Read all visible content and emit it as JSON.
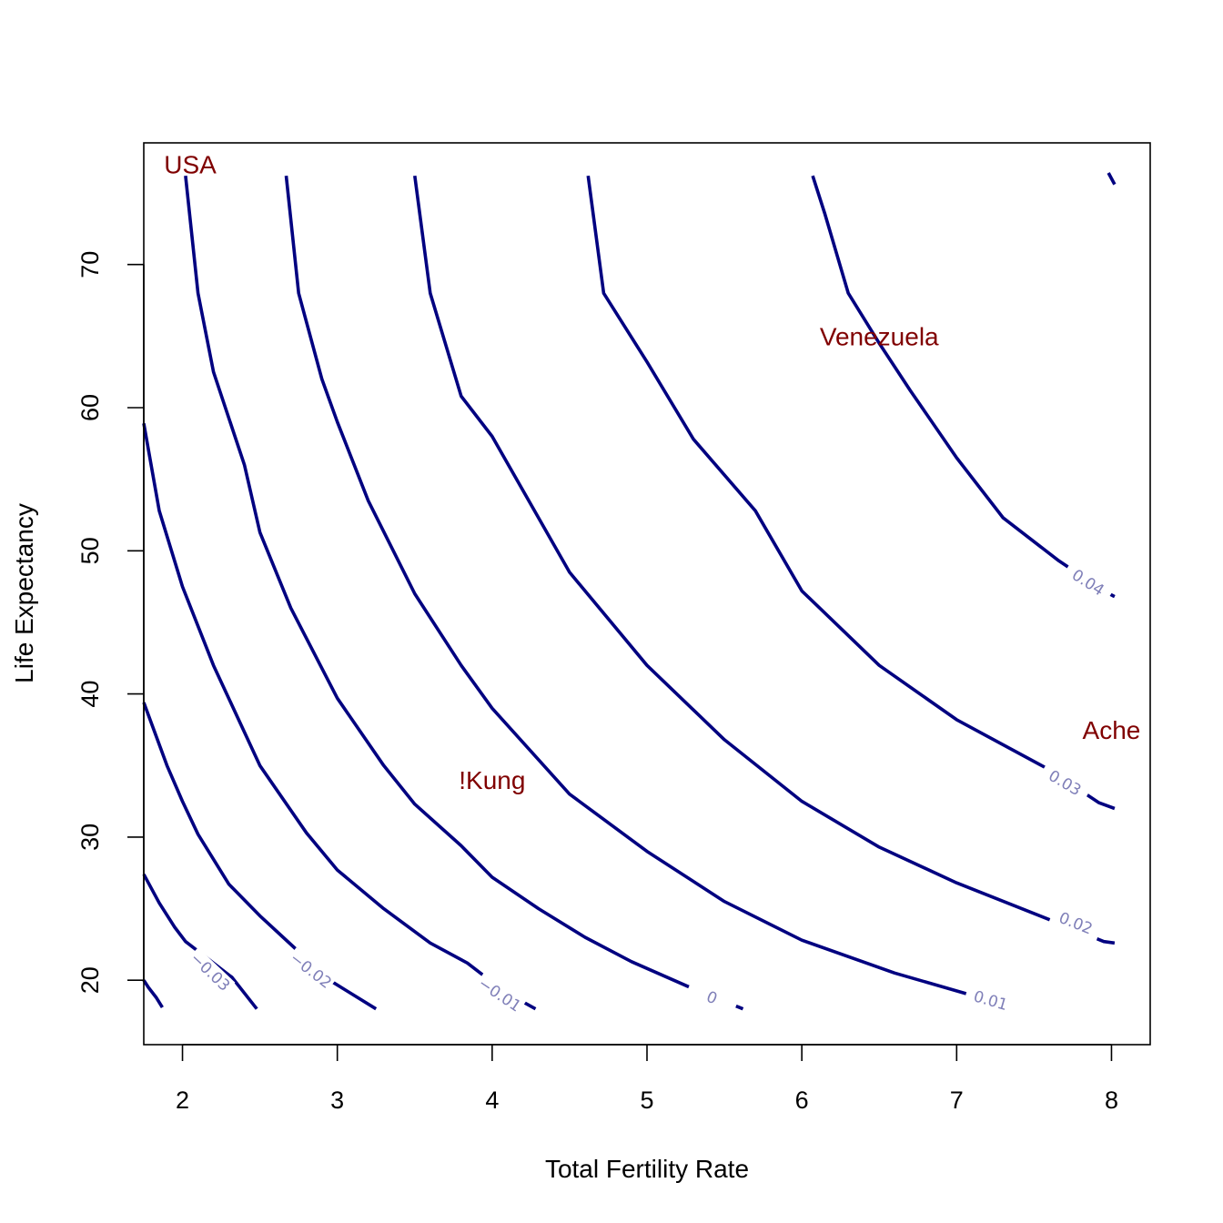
{
  "chart_data": {
    "type": "contour",
    "title": "",
    "xlabel": "Total Fertility Rate",
    "ylabel": "Life Expectancy",
    "xlim": [
      1.75,
      8.25
    ],
    "ylim": [
      15.5,
      78.5
    ],
    "x_ticks": [
      2,
      3,
      4,
      5,
      6,
      7,
      8
    ],
    "y_ticks": [
      20,
      30,
      40,
      50,
      60,
      70
    ],
    "grid": false,
    "line_color": "#000080",
    "label_color": "#7f7fb8",
    "point_color": "#800000",
    "contours": [
      {
        "level": "",
        "label_at": null,
        "points": [
          [
            1.75,
            20.0
          ],
          [
            1.78,
            19.5
          ],
          [
            1.83,
            18.8
          ],
          [
            1.87,
            18.1
          ]
        ]
      },
      {
        "level": "−0.03",
        "label_at": [
          2.18,
          20.6
        ],
        "points": [
          [
            1.75,
            27.4
          ],
          [
            1.85,
            25.4
          ],
          [
            1.95,
            23.7
          ],
          [
            2.02,
            22.7
          ],
          [
            2.32,
            20.2
          ],
          [
            2.48,
            18.0
          ]
        ]
      },
      {
        "level": "−0.02",
        "label_at": [
          2.83,
          20.7
        ],
        "points": [
          [
            1.75,
            39.4
          ],
          [
            1.9,
            35.0
          ],
          [
            2.0,
            32.5
          ],
          [
            2.1,
            30.2
          ],
          [
            2.3,
            26.7
          ],
          [
            2.5,
            24.5
          ],
          [
            2.65,
            23.0
          ],
          [
            2.95,
            20.0
          ],
          [
            3.25,
            18.0
          ]
        ]
      },
      {
        "level": "−0.01",
        "label_at": [
          4.05,
          19.0
        ],
        "points": [
          [
            1.75,
            58.9
          ],
          [
            1.85,
            52.8
          ],
          [
            2.0,
            47.5
          ],
          [
            2.2,
            42.0
          ],
          [
            2.5,
            35.0
          ],
          [
            2.8,
            30.3
          ],
          [
            3.0,
            27.7
          ],
          [
            3.3,
            25.0
          ],
          [
            3.6,
            22.6
          ],
          [
            3.84,
            21.2
          ],
          [
            4.08,
            19.2
          ],
          [
            4.28,
            18.0
          ]
        ]
      },
      {
        "level": "0",
        "label_at": [
          5.42,
          18.8
        ],
        "points": [
          [
            2.02,
            76.2
          ],
          [
            2.1,
            68.0
          ],
          [
            2.2,
            62.5
          ],
          [
            2.4,
            56.0
          ],
          [
            2.5,
            51.3
          ],
          [
            2.7,
            46.0
          ],
          [
            3.0,
            39.7
          ],
          [
            3.3,
            35.0
          ],
          [
            3.5,
            32.3
          ],
          [
            3.8,
            29.4
          ],
          [
            4.0,
            27.2
          ],
          [
            4.3,
            25.0
          ],
          [
            4.6,
            23.0
          ],
          [
            4.9,
            21.3
          ],
          [
            5.32,
            19.3
          ],
          [
            5.62,
            18.0
          ]
        ]
      },
      {
        "level": "0.01",
        "label_at": [
          7.22,
          18.6
        ],
        "points": [
          [
            2.67,
            76.2
          ],
          [
            2.75,
            68.0
          ],
          [
            2.9,
            62.0
          ],
          [
            3.0,
            59.0
          ],
          [
            3.2,
            53.5
          ],
          [
            3.5,
            47.0
          ],
          [
            3.8,
            42.0
          ],
          [
            4.0,
            39.0
          ],
          [
            4.5,
            33.0
          ],
          [
            5.0,
            29.0
          ],
          [
            5.5,
            25.5
          ],
          [
            6.0,
            22.8
          ],
          [
            6.6,
            20.5
          ],
          [
            7.08,
            19.0
          ]
        ]
      },
      {
        "level": "0.02",
        "label_at": [
          7.77,
          24.0
        ],
        "points": [
          [
            3.5,
            76.2
          ],
          [
            3.6,
            68.0
          ],
          [
            3.8,
            60.8
          ],
          [
            4.0,
            58.0
          ],
          [
            4.5,
            48.5
          ],
          [
            5.0,
            42.0
          ],
          [
            5.5,
            36.8
          ],
          [
            6.0,
            32.5
          ],
          [
            6.5,
            29.3
          ],
          [
            7.0,
            26.8
          ],
          [
            7.63,
            24.1
          ],
          [
            7.95,
            22.7
          ],
          [
            8.02,
            22.6
          ]
        ]
      },
      {
        "level": "0.03",
        "label_at": [
          7.7,
          33.8
        ],
        "points": [
          [
            4.62,
            76.2
          ],
          [
            4.72,
            68.0
          ],
          [
            5.0,
            63.2
          ],
          [
            5.3,
            57.8
          ],
          [
            5.7,
            52.8
          ],
          [
            6.0,
            47.2
          ],
          [
            6.5,
            42.0
          ],
          [
            7.0,
            38.2
          ],
          [
            7.6,
            34.7
          ],
          [
            7.92,
            32.4
          ],
          [
            8.02,
            32.0
          ]
        ]
      },
      {
        "level": "0.04",
        "label_at": [
          7.85,
          47.8
        ],
        "points": [
          [
            6.07,
            76.2
          ],
          [
            6.15,
            73.5
          ],
          [
            6.3,
            68.0
          ],
          [
            6.5,
            64.5
          ],
          [
            6.7,
            61.2
          ],
          [
            7.0,
            56.5
          ],
          [
            7.3,
            52.3
          ],
          [
            7.66,
            49.3
          ],
          [
            7.95,
            47.2
          ],
          [
            8.02,
            46.8
          ]
        ]
      },
      {
        "level": "",
        "label_at": null,
        "points": [
          [
            7.98,
            76.4
          ],
          [
            8.02,
            75.6
          ]
        ]
      }
    ],
    "points": [
      {
        "label": "USA",
        "x": 2.05,
        "y": 77.0
      },
      {
        "label": "Venezuela",
        "x": 6.5,
        "y": 65.0
      },
      {
        "label": "!Kung",
        "x": 4.0,
        "y": 34.0
      },
      {
        "label": "Ache",
        "x": 8.0,
        "y": 37.5
      }
    ]
  }
}
